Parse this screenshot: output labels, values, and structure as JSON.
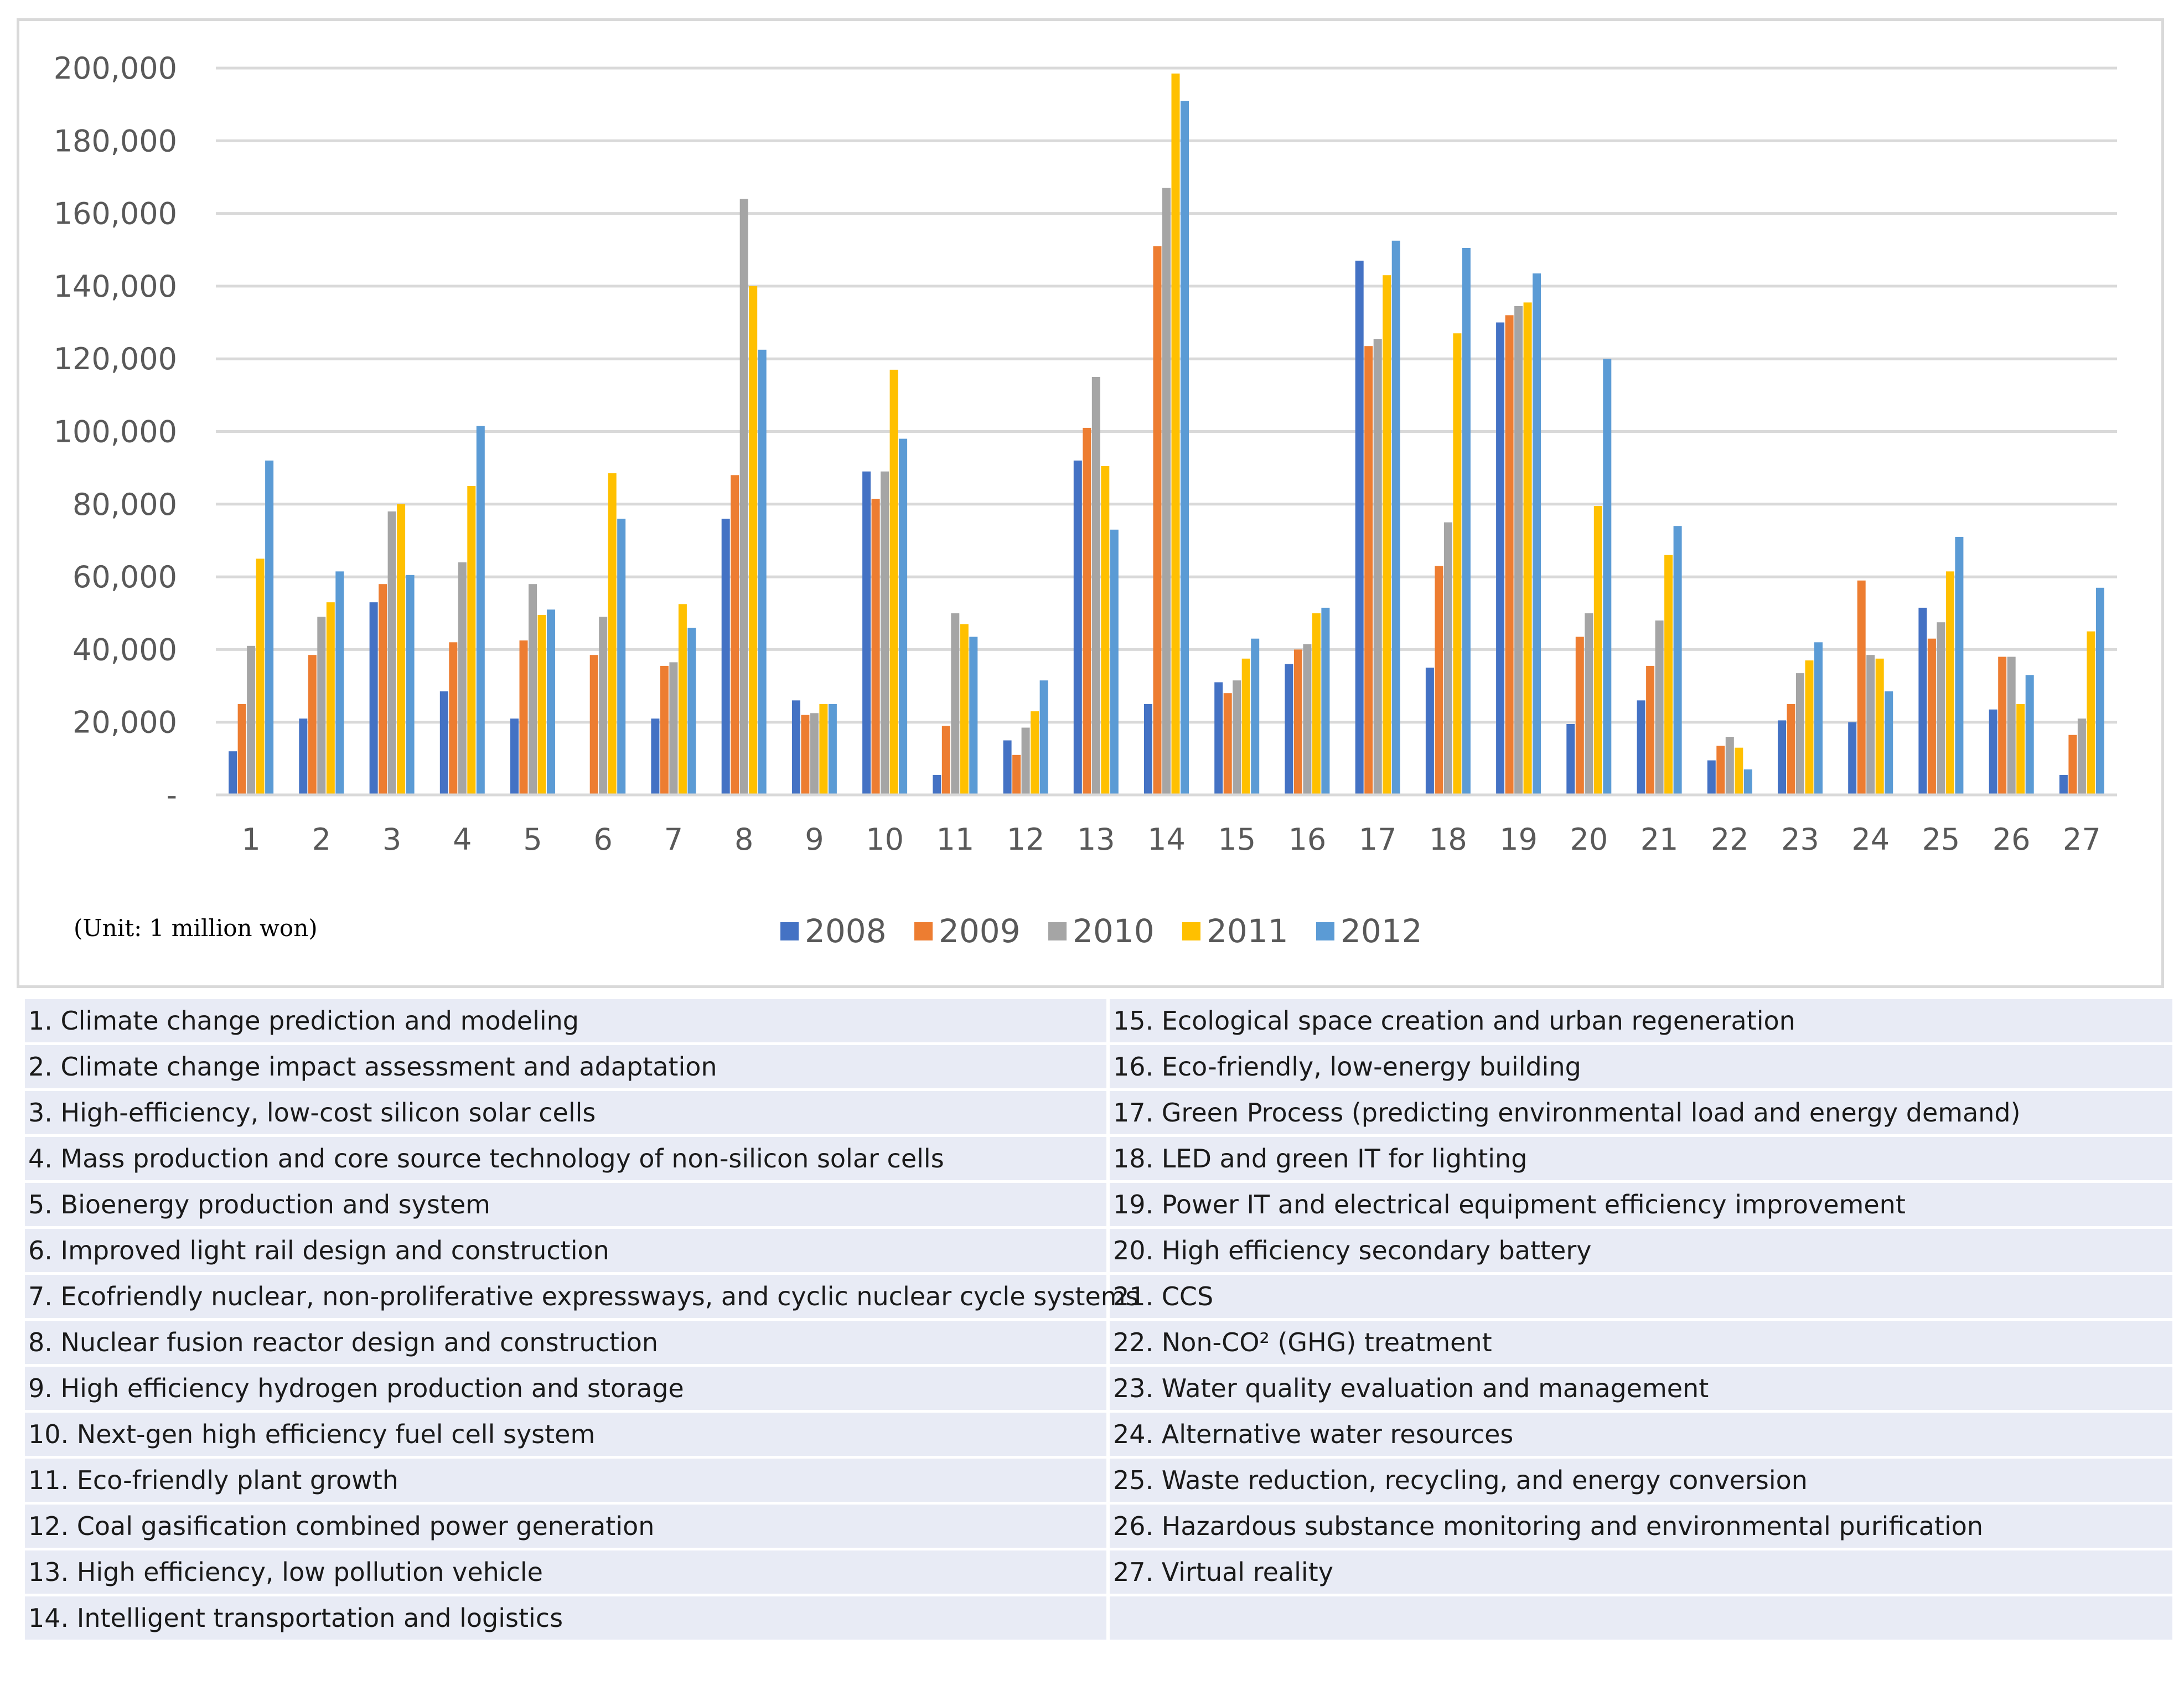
{
  "chart_data": {
    "type": "bar",
    "title": "",
    "xlabel": "",
    "ylabel": "",
    "ylim": [
      0,
      200000
    ],
    "y_ticks": [
      {
        "value": 0,
        "label": "-"
      },
      {
        "value": 20000,
        "label": "20,000"
      },
      {
        "value": 40000,
        "label": "40,000"
      },
      {
        "value": 60000,
        "label": "60,000"
      },
      {
        "value": 80000,
        "label": "80,000"
      },
      {
        "value": 100000,
        "label": "100,000"
      },
      {
        "value": 120000,
        "label": "120,000"
      },
      {
        "value": 140000,
        "label": "140,000"
      },
      {
        "value": 160000,
        "label": "160,000"
      },
      {
        "value": 180000,
        "label": "180,000"
      },
      {
        "value": 200000,
        "label": "200,000"
      }
    ],
    "grid": true,
    "legend_position": "bottom-center",
    "unit_note": "(Unit: 1 million won)",
    "categories": [
      "1",
      "2",
      "3",
      "4",
      "5",
      "6",
      "7",
      "8",
      "9",
      "10",
      "11",
      "12",
      "13",
      "14",
      "15",
      "16",
      "17",
      "18",
      "19",
      "20",
      "21",
      "22",
      "23",
      "24",
      "25",
      "26",
      "27"
    ],
    "series": [
      {
        "name": "2008",
        "color": "#4472c4",
        "values": [
          12000,
          21000,
          53000,
          28500,
          21000,
          0,
          21000,
          76000,
          26000,
          89000,
          5500,
          15000,
          92000,
          25000,
          31000,
          36000,
          147000,
          35000,
          130000,
          19500,
          26000,
          9500,
          20500,
          20000,
          51500,
          23500,
          5500
        ]
      },
      {
        "name": "2009",
        "color": "#ed7d31",
        "values": [
          25000,
          38500,
          58000,
          42000,
          42500,
          38500,
          35500,
          88000,
          22000,
          81500,
          19000,
          11000,
          101000,
          151000,
          28000,
          40000,
          123500,
          63000,
          132000,
          43500,
          35500,
          13500,
          25000,
          59000,
          43000,
          38000,
          16500
        ]
      },
      {
        "name": "2010",
        "color": "#a5a5a5",
        "values": [
          41000,
          49000,
          78000,
          64000,
          58000,
          49000,
          36500,
          164000,
          22500,
          89000,
          50000,
          18500,
          115000,
          167000,
          31500,
          41500,
          125500,
          75000,
          134500,
          50000,
          48000,
          16000,
          33500,
          38500,
          47500,
          38000,
          21000
        ]
      },
      {
        "name": "2011",
        "color": "#ffc000",
        "values": [
          65000,
          53000,
          80000,
          85000,
          49500,
          88500,
          52500,
          140000,
          25000,
          117000,
          47000,
          23000,
          90500,
          198500,
          37500,
          50000,
          143000,
          127000,
          135500,
          79500,
          66000,
          13000,
          37000,
          37500,
          61500,
          25000,
          45000
        ]
      },
      {
        "name": "2012",
        "color": "#5b9bd5",
        "values": [
          92000,
          61500,
          60500,
          101500,
          51000,
          76000,
          46000,
          122500,
          25000,
          98000,
          43500,
          31500,
          73000,
          191000,
          43000,
          51500,
          152500,
          150500,
          143500,
          120000,
          74000,
          7000,
          42000,
          28500,
          71000,
          33000,
          57000
        ]
      }
    ]
  },
  "legend_table": {
    "left": [
      "1. Climate change prediction and  modeling",
      "2. Climate change impact assessment and adaptation",
      "3. High-efficiency, low-cost silicon solar cells",
      "4. Mass production and core source technology of non-silicon solar cells",
      "5. Bioenergy production and system",
      "6. Improved light rail design and construction",
      "7. Ecofriendly nuclear, non-proliferative expressways, and cyclic nuclear cycle systems",
      "8. Nuclear fusion reactor design and construction",
      "9. High efficiency hydrogen production and storage",
      "10. Next-gen high efficiency fuel cell system",
      "11. Eco-friendly plant growth",
      "12. Coal gasification combined power generation",
      "13. High efficiency, low pollution vehicle",
      "14. Intelligent transportation and logistics"
    ],
    "right": [
      "15. Ecological space creation and urban regeneration",
      "16. Eco-friendly, low-energy building",
      "17. Green Process (predicting environmental load and energy demand)",
      "18. LED and green IT for lighting",
      "19. Power IT and electrical equipment efficiency improvement",
      "20. High efficiency secondary battery",
      "21. CCS",
      "22. Non-CO² (GHG) treatment",
      "23. Water quality evaluation and management",
      "24. Alternative water resources",
      "25. Waste reduction, recycling, and energy conversion",
      "26. Hazardous substance monitoring and environmental purification",
      "27. Virtual reality",
      ""
    ]
  }
}
